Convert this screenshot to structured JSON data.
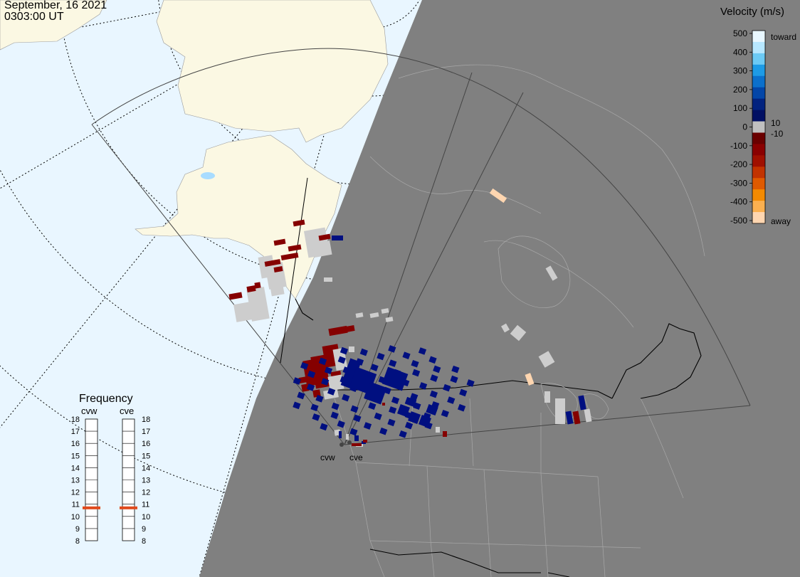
{
  "header": {
    "date": "September, 16 2021",
    "time": "0303:00 UT"
  },
  "legend": {
    "title": "Velocity (m/s)",
    "ticks": [
      "500",
      "400",
      "300",
      "200",
      "100",
      "0",
      "-100",
      "-200",
      "-300",
      "-400",
      "-500"
    ],
    "label_toward": "toward",
    "label_away": "away",
    "label_pos": "10",
    "label_neg": "-10",
    "colors": [
      "#e8f7ff",
      "#b7e7ff",
      "#6ccaf5",
      "#1d9be6",
      "#0b70cc",
      "#0346a8",
      "#02237f",
      "#000f63",
      "#c0c0c0",
      "#6a0000",
      "#8a0000",
      "#a01000",
      "#c23300",
      "#df5a00",
      "#f38a00",
      "#fbb050",
      "#ffd6b0"
    ]
  },
  "frequency": {
    "title": "Frequency",
    "radars": [
      {
        "name": "cvw",
        "value": 10.7
      },
      {
        "name": "cve",
        "value": 10.7
      }
    ],
    "scale": [
      "18",
      "17",
      "16",
      "15",
      "14",
      "13",
      "12",
      "11",
      "10",
      "9",
      "8"
    ],
    "range": [
      8,
      18
    ],
    "marker_color": "#e04a1c"
  },
  "radar_sites": [
    {
      "name": "cvw"
    },
    {
      "name": "cve"
    }
  ],
  "map_colors": {
    "ocean": "#e9f6ff",
    "land_day": "#fbf8e3",
    "night": "#808080",
    "state_lines": "#a8a8a8",
    "toward": "#000f80",
    "away": "#850000",
    "ground_scatter": "#cdcdcd"
  }
}
